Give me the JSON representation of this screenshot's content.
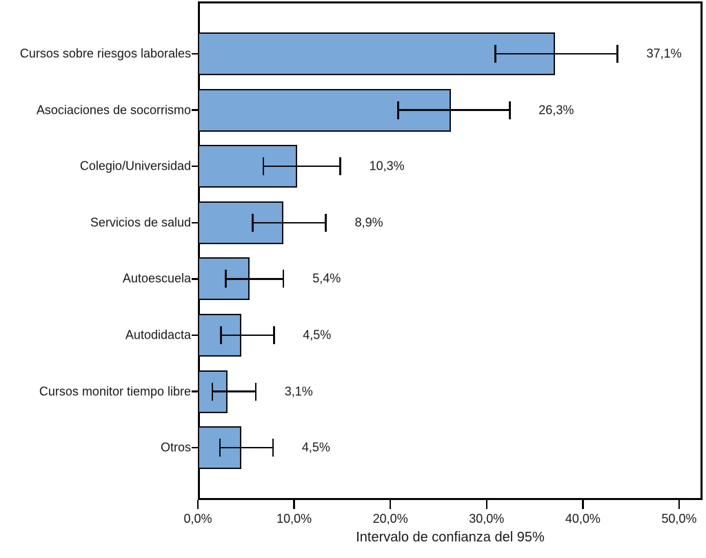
{
  "chart_data": {
    "type": "bar",
    "orientation": "horizontal",
    "title": "",
    "xlabel": "Intervalo de confianza del 95%",
    "ylabel": "",
    "categories": [
      "Cursos sobre riesgos laborales",
      "Asociaciones de socorrismo",
      "Colegio/Universidad",
      "Servicios de salud",
      "Autoescuela",
      "Autodidacta",
      "Cursos monitor tiempo libre",
      "Otros"
    ],
    "values": [
      37.1,
      26.3,
      10.3,
      8.9,
      5.4,
      4.5,
      3.1,
      4.5
    ],
    "value_labels": [
      "37,1%",
      "26,3%",
      "10,3%",
      "8,9%",
      "5,4%",
      "4,5%",
      "3,1%",
      "4,5%"
    ],
    "ci_low": [
      30.9,
      20.8,
      6.8,
      5.7,
      2.9,
      2.4,
      1.5,
      2.3
    ],
    "ci_high": [
      43.6,
      32.4,
      14.8,
      13.3,
      8.9,
      7.9,
      6.0,
      7.8
    ],
    "x_tick_values": [
      0,
      10,
      20,
      30,
      40,
      50
    ],
    "x_tick_labels": [
      "0,0%",
      "10,0%",
      "20,0%",
      "30,0%",
      "40,0%",
      "50,0%"
    ],
    "xlim": [
      0,
      52.4
    ],
    "grid": false,
    "legend": null,
    "error_bars": "95% confidence interval, horizontal caps",
    "bar_color": "#7AA8D8",
    "bar_border_color": "#0d0d12",
    "axis_color": "#0a0a0a",
    "text_color": "#1a1a1a"
  }
}
